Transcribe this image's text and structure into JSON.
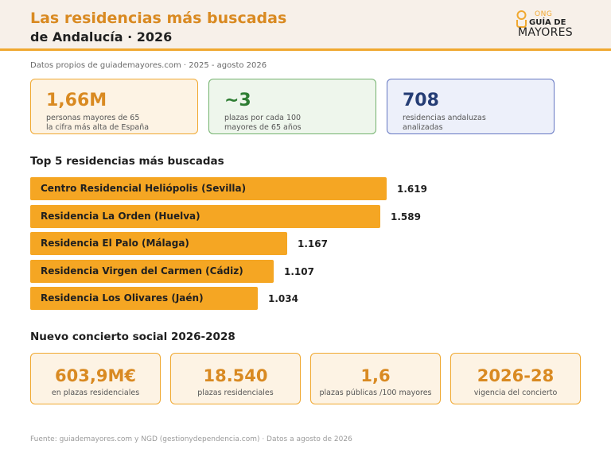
{
  "header": {
    "title_line1": "Las residencias más buscadas",
    "title_line2": "de Andalucía · 2026"
  },
  "logo": {
    "ong": "ONG",
    "guia": "GUÍA DE",
    "mayores": "MAYORES",
    "icon": "logo-mark-icon",
    "accent": "#f0a830"
  },
  "subtitle": "Datos propios de guiademayores.com · 2025 - agosto 2026",
  "kpis": [
    {
      "value": "1,66M",
      "desc_line1": "personas mayores de 65",
      "desc_line2": "la cifra más alta de España",
      "color": "#d98a22"
    },
    {
      "value": "~3",
      "desc_line1": "plazas por cada 100",
      "desc_line2": "mayores de 65 años",
      "color": "#2d7d32"
    },
    {
      "value": "708",
      "desc_line1": "residencias andaluzas",
      "desc_line2": "analizadas",
      "color": "#253d75"
    }
  ],
  "top_section_title": "Top 5 residencias más buscadas",
  "chart_data": {
    "type": "bar",
    "orientation": "horizontal",
    "categories": [
      "Centro Residencial Heliópolis (Sevilla)",
      "Residencia La Orden (Huelva)",
      "Residencia El Palo (Málaga)",
      "Residencia Virgen del Carmen (Cádiz)",
      "Residencia Los Olivares (Jaén)"
    ],
    "values": [
      1619,
      1589,
      1167,
      1107,
      1034
    ],
    "value_labels": [
      "1.619",
      "1.589",
      "1.167",
      "1.107",
      "1.034"
    ],
    "bar_color": "#f5a623"
  },
  "concierto_section_title": "Nuevo concierto social 2026-2028",
  "stats": [
    {
      "value": "603,9M€",
      "label": "en plazas residenciales"
    },
    {
      "value": "18.540",
      "label": "plazas residenciales"
    },
    {
      "value": "1,6",
      "label": "plazas públicas /100 mayores"
    },
    {
      "value": "2026-28",
      "label": "vigencia del concierto"
    }
  ],
  "footer": "Fuente: guiademayores.com y NGD (gestionydependencia.com) · Datos a agosto de 2026"
}
